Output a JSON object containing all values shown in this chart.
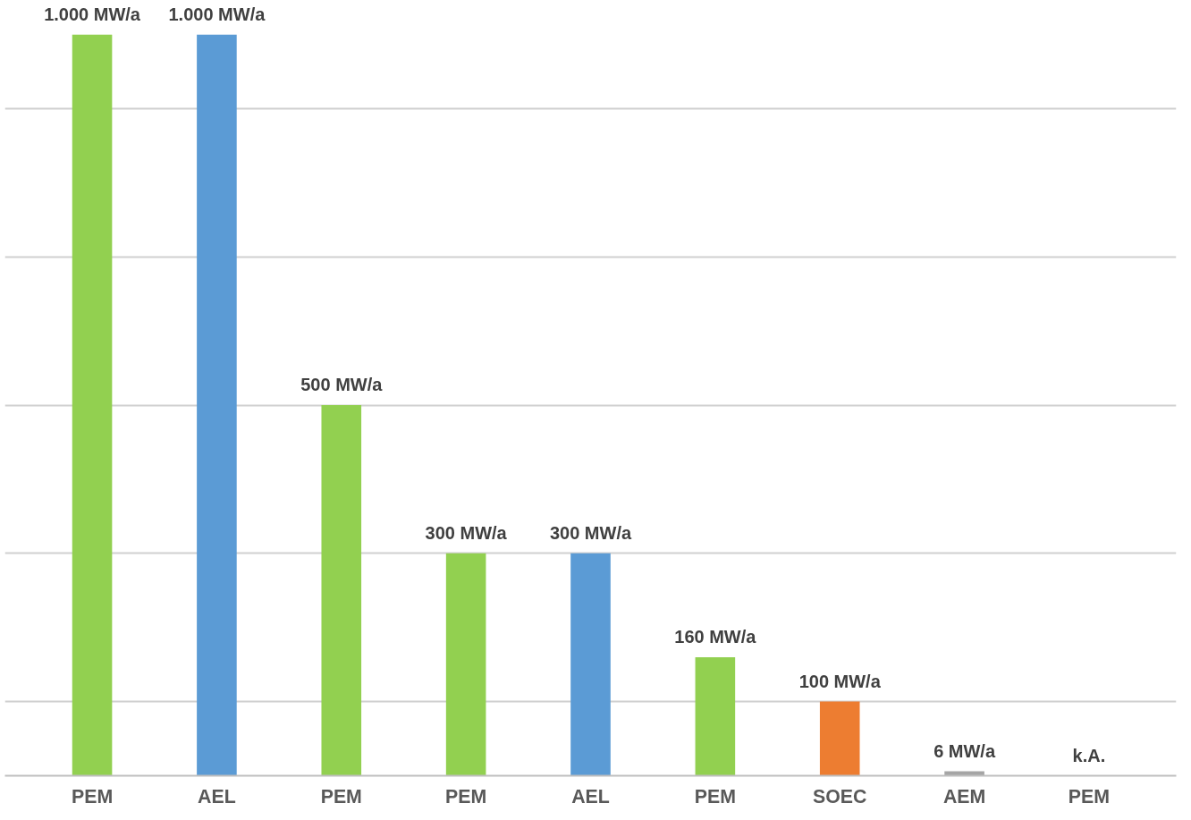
{
  "chart_data": {
    "type": "bar",
    "categories": [
      "PEM",
      "AEL",
      "PEM",
      "PEM",
      "AEL",
      "PEM",
      "SOEC",
      "AEM",
      "PEM"
    ],
    "values": [
      1000,
      1000,
      500,
      300,
      300,
      160,
      100,
      6,
      null
    ],
    "colors": [
      "#92d050",
      "#5b9bd5",
      "#92d050",
      "#92d050",
      "#5b9bd5",
      "#92d050",
      "#ed7d31",
      "#a5a5a5",
      "#92d050"
    ],
    "value_labels": [
      "1.000 MW/a",
      "1.000 MW/a",
      "500 MW/a",
      "300 MW/a",
      "300 MW/a",
      "160 MW/a",
      "100 MW/a",
      "6 MW/a",
      "k.A."
    ],
    "yticks": [
      {
        "value": 100,
        "label": null
      },
      {
        "value": 300,
        "label": null
      },
      {
        "value": 500,
        "label": null
      },
      {
        "value": 700,
        "label": null
      },
      {
        "value": 900,
        "label": null
      }
    ],
    "grid": "y",
    "tick_labels": "x"
  }
}
